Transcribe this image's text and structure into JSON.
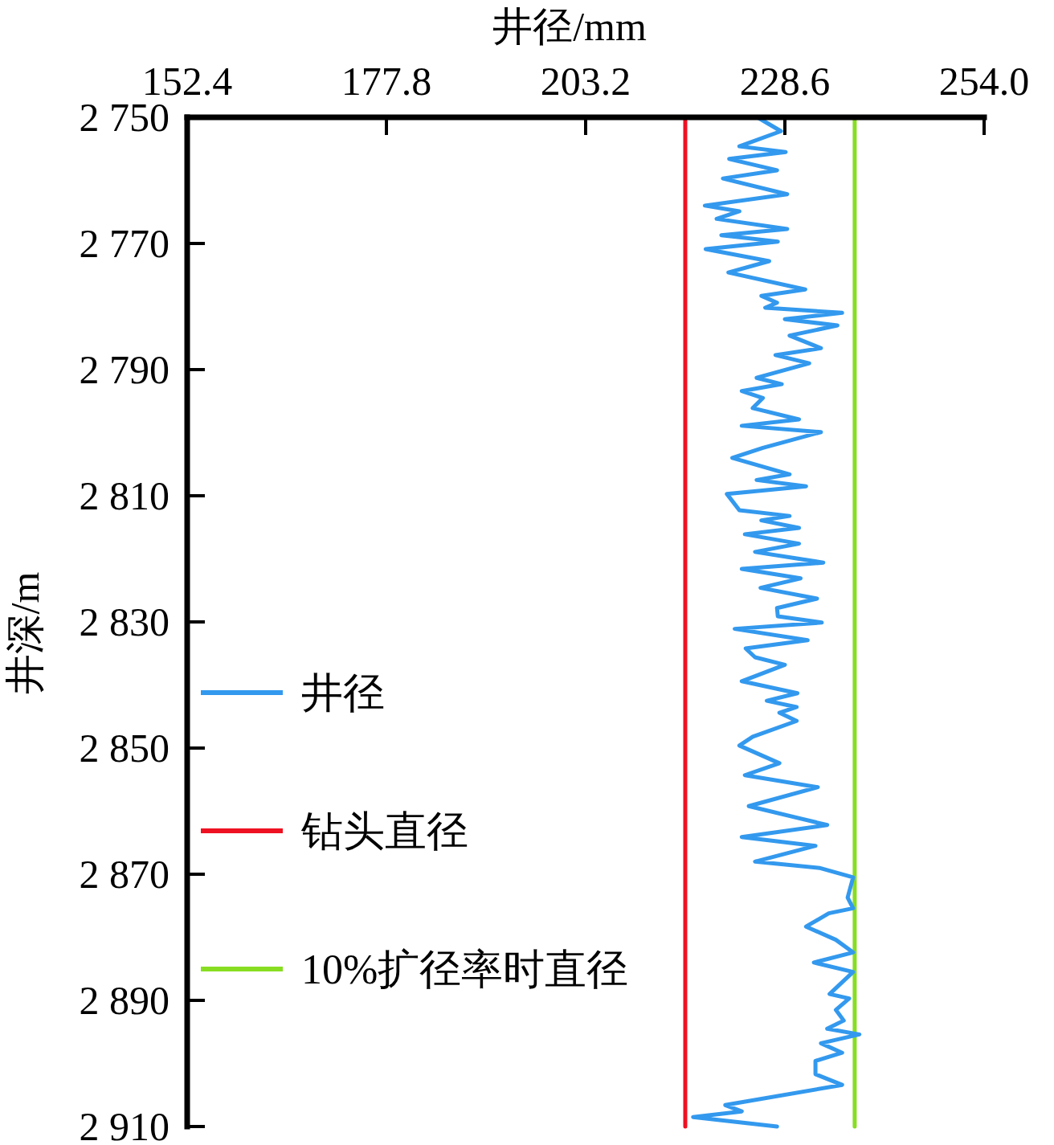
{
  "chart_data": {
    "type": "line",
    "xlabel": "井径/mm",
    "ylabel": "井深/m",
    "xlim": [
      152.4,
      254.0
    ],
    "xticks": [
      152.4,
      177.8,
      203.2,
      228.6,
      {
        "value": 254.0,
        "label": "254.0"
      }
    ],
    "ylim": [
      2910,
      2750
    ],
    "yticks": [
      {
        "value": 2750,
        "label": "2 750"
      },
      {
        "value": 2770,
        "label": "2 770"
      },
      {
        "value": 2790,
        "label": "2 790"
      },
      {
        "value": 2810,
        "label": "2 810"
      },
      {
        "value": 2830,
        "label": "2 830"
      },
      {
        "value": 2850,
        "label": "2 850"
      },
      {
        "value": 2870,
        "label": "2 870"
      },
      {
        "value": 2890,
        "label": "2 890"
      },
      {
        "value": 2910,
        "label": "2 910"
      }
    ],
    "legend": "left",
    "line_style": "solid",
    "marker": "none",
    "series": [
      {
        "name": "井径",
        "color": "#3399ee",
        "x": [
          225.1,
          228.1,
          222.8,
          228.7,
          221.5,
          227.6,
          220.7,
          228.9,
          218.4,
          222.8,
          219.9,
          228.9,
          220.5,
          227.7,
          218.5,
          226.6,
          221.4,
          231.2,
          225.6,
          227.6,
          226.1,
          235.9,
          228.6,
          235.3,
          229.2,
          233.2,
          227.4,
          231.7,
          225.0,
          228.2,
          223.1,
          225.8,
          224.5,
          230.4,
          223.1,
          233.2,
          225.8,
          221.9,
          229.2,
          225.0,
          231.3,
          221.2,
          222.8,
          229.2,
          225.6,
          230.4,
          223.5,
          230.4,
          224.8,
          233.5,
          223.1,
          230.6,
          225.5,
          232.7,
          227.6,
          227.7,
          233.3,
          222.2,
          231.5,
          223.6,
          224.8,
          228.6,
          223.1,
          230.2,
          226.3,
          230.1,
          227.9,
          230.1,
          224.5,
          222.8,
          227.9,
          223.5,
          232.8,
          224.0,
          234.0,
          223.1,
          232.5,
          224.8,
          233.0,
          237.3,
          236.6,
          237.3,
          234.2,
          231.3,
          235.1,
          237.3,
          232.3,
          237.3,
          234.3,
          236.8,
          235.1,
          236.1,
          234.0,
          238.1,
          233.2,
          235.9,
          232.5,
          232.5,
          235.9,
          221.0,
          223.1,
          216.9,
          227.6
        ],
        "values": [
          2750.0,
          2752.2,
          2754.6,
          2755.5,
          2756.6,
          2758.4,
          2759.7,
          2762.2,
          2764.0,
          2764.9,
          2766.1,
          2767.7,
          2768.7,
          2769.7,
          2770.9,
          2772.8,
          2774.6,
          2777.3,
          2778.3,
          2779.4,
          2780.2,
          2781.0,
          2782.0,
          2783.0,
          2784.6,
          2786.6,
          2787.7,
          2789.0,
          2791.3,
          2792.3,
          2793.4,
          2794.5,
          2796.1,
          2797.9,
          2798.9,
          2799.9,
          2802.4,
          2804.0,
          2806.6,
          2807.5,
          2808.5,
          2809.7,
          2812.3,
          2813.2,
          2813.9,
          2815.1,
          2816.1,
          2817.6,
          2818.9,
          2820.6,
          2821.6,
          2823.1,
          2824.6,
          2826.3,
          2827.8,
          2829.1,
          2830.1,
          2831.1,
          2832.9,
          2834.2,
          2835.6,
          2836.8,
          2839.4,
          2841.3,
          2842.5,
          2843.5,
          2844.4,
          2845.7,
          2848.2,
          2849.6,
          2852.4,
          2854.3,
          2856.2,
          2859.2,
          2862.2,
          2864.1,
          2865.5,
          2868.0,
          2869.0,
          2870.5,
          2873.7,
          2875.4,
          2876.2,
          2878.3,
          2880.4,
          2882.4,
          2884.0,
          2885.5,
          2889.0,
          2889.7,
          2891.5,
          2893.2,
          2894.5,
          2895.4,
          2896.8,
          2898.3,
          2899.6,
          2901.7,
          2903.4,
          2906.6,
          2907.6,
          2908.5,
          2910.0
        ]
      },
      {
        "name": "钻头直径",
        "color": "#ee1122",
        "x": [
          215.9,
          215.9
        ],
        "values": [
          2750,
          2910
        ]
      },
      {
        "name": "10%扩径率时直径",
        "color": "#88dd22",
        "x": [
          237.5,
          237.5
        ],
        "values": [
          2750,
          2910
        ]
      }
    ]
  }
}
